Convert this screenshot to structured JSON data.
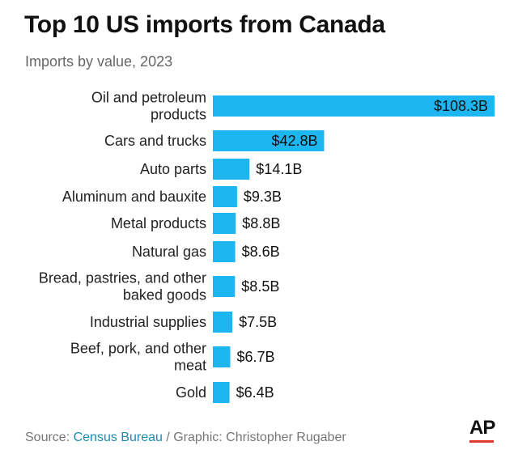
{
  "header": {
    "title": "Top 10 US imports from Canada",
    "subtitle": "Imports by value, 2023"
  },
  "footer": {
    "source_prefix": "Source: ",
    "source_name": "Census Bureau",
    "separator": " / ",
    "credit": "Graphic: Christopher Rugaber",
    "logo_text": "AP"
  },
  "colors": {
    "bar": "#1eb6f0",
    "link": "#1a8cb0",
    "logo_accent": "#e03a2f"
  },
  "chart_data": {
    "type": "bar",
    "orientation": "horizontal",
    "title": "Top 10 US imports from Canada",
    "subtitle": "Imports by value, 2023",
    "unit": "billion USD",
    "categories": [
      [
        "Oil and petroleum",
        "products"
      ],
      [
        "Cars and trucks"
      ],
      [
        "Auto parts"
      ],
      [
        "Aluminum and bauxite"
      ],
      [
        "Metal products"
      ],
      [
        "Natural gas"
      ],
      [
        "Bread, pastries, and other",
        "baked goods"
      ],
      [
        "Industrial supplies"
      ],
      [
        "Beef, pork, and other",
        "meat"
      ],
      [
        "Gold"
      ]
    ],
    "values": [
      108.3,
      42.8,
      14.1,
      9.3,
      8.8,
      8.6,
      8.5,
      7.5,
      6.7,
      6.4
    ],
    "labels": [
      "$108.3B",
      "$42.8B",
      "$14.1B",
      "$9.3B",
      "$8.8B",
      "$8.6B",
      "$8.5B",
      "$7.5B",
      "$6.7B",
      "$6.4B"
    ],
    "label_inside": [
      true,
      true,
      false,
      false,
      false,
      false,
      false,
      false,
      false,
      false
    ],
    "grid": false,
    "legend": "none"
  }
}
